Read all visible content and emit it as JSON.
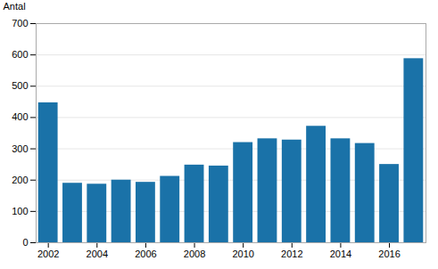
{
  "chart_data": {
    "type": "bar",
    "x": [
      2002,
      2003,
      2004,
      2005,
      2006,
      2007,
      2008,
      2009,
      2010,
      2011,
      2012,
      2013,
      2014,
      2015,
      2016,
      2017
    ],
    "values": [
      447,
      190,
      187,
      200,
      193,
      212,
      248,
      245,
      320,
      332,
      328,
      372,
      332,
      317,
      250,
      588
    ],
    "color": "#1a72a8",
    "y_label": "Antal",
    "xlim": [
      2001.5,
      2017.5
    ],
    "xticks": [
      2002,
      2004,
      2006,
      2008,
      2010,
      2012,
      2014,
      2016
    ],
    "ylim": [
      0,
      700
    ],
    "yticks": [
      0,
      100,
      200,
      300,
      400,
      500,
      600,
      700
    ],
    "grid": true
  }
}
